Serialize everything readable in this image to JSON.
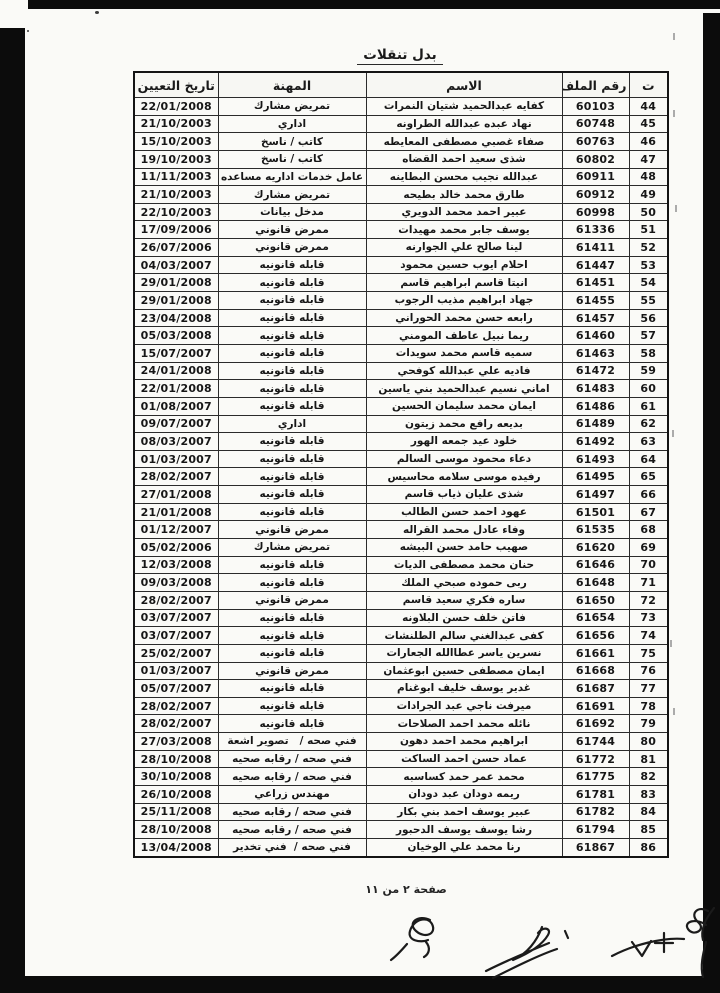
{
  "page": {
    "title": "بدل تنقلات",
    "footer": "صفحة ٢ من ١١"
  },
  "colors": {
    "page_background": "#fafaf7",
    "frame": "#0c0c0c",
    "ink": "#1a1a1a"
  },
  "table": {
    "headers": {
      "index": "ت",
      "file_no": "رقم الملف",
      "name": "الاسم",
      "profession": "المهنة",
      "date": "تاريخ التعيين"
    },
    "rows": [
      {
        "index": "44",
        "file_no": "60103",
        "name": "كفايه عبدالحميد شتيان النمرات",
        "profession": "تمريض مشارك",
        "date": "22/01/2008"
      },
      {
        "index": "45",
        "file_no": "60748",
        "name": "نهاد عبده عبدالله الطراونه",
        "profession": "اداري",
        "date": "21/10/2003"
      },
      {
        "index": "46",
        "file_no": "60763",
        "name": "صفاء غصبي مصطفى المعايطه",
        "profession": "كاتب / ناسخ",
        "date": "15/10/2003"
      },
      {
        "index": "47",
        "file_no": "60802",
        "name": "شذى سعيد احمد القضاه",
        "profession": "كاتب / ناسخ",
        "date": "19/10/2003"
      },
      {
        "index": "48",
        "file_no": "60911",
        "name": "عبدالله نجيب محسن البطاينه",
        "profession": "عامل خدمات اداريه مساعده",
        "date": "11/11/2003"
      },
      {
        "index": "49",
        "file_no": "60912",
        "name": "طارق محمد خالد بطيحه",
        "profession": "تمريض مشارك",
        "date": "21/10/2003"
      },
      {
        "index": "50",
        "file_no": "60998",
        "name": "عبير احمد محمد الدويري",
        "profession": "مدخل بيانات",
        "date": "22/10/2003"
      },
      {
        "index": "51",
        "file_no": "61336",
        "name": "يوسف جابر محمد مهيدات",
        "profession": "ممرض قانوني",
        "date": "17/09/2006"
      },
      {
        "index": "52",
        "file_no": "61411",
        "name": "لينا صالح علي الجوارنه",
        "profession": "ممرض قانوني",
        "date": "26/07/2006"
      },
      {
        "index": "53",
        "file_no": "61447",
        "name": "احلام ايوب حسين محمود",
        "profession": "قابله قانونيه",
        "date": "04/03/2007"
      },
      {
        "index": "54",
        "file_no": "61451",
        "name": "انيتا قاسم ابراهيم قاسم",
        "profession": "قابله قانونيه",
        "date": "29/01/2008"
      },
      {
        "index": "55",
        "file_no": "61455",
        "name": "جهاد ابراهيم مذيب الرجوب",
        "profession": "قابله قانونيه",
        "date": "29/01/2008"
      },
      {
        "index": "56",
        "file_no": "61457",
        "name": "رابعه حسن محمد الحوراني",
        "profession": "قابله قانونيه",
        "date": "23/04/2008"
      },
      {
        "index": "57",
        "file_no": "61460",
        "name": "ريما نبيل عاطف المومني",
        "profession": "قابله قانونيه",
        "date": "05/03/2008"
      },
      {
        "index": "58",
        "file_no": "61463",
        "name": "سميه قاسم محمد سويدات",
        "profession": "قابله قانونيه",
        "date": "15/07/2007"
      },
      {
        "index": "59",
        "file_no": "61472",
        "name": "فاديه علي عبدالله كوفحي",
        "profession": "قابله قانونيه",
        "date": "24/01/2008"
      },
      {
        "index": "60",
        "file_no": "61483",
        "name": "اماني نسيم عبدالحميد بني ياسين",
        "profession": "قابله قانونيه",
        "date": "22/01/2008"
      },
      {
        "index": "61",
        "file_no": "61486",
        "name": "ايمان محمد سليمان الحسين",
        "profession": "قابله قانونيه",
        "date": "01/08/2007"
      },
      {
        "index": "62",
        "file_no": "61489",
        "name": "بديعه رافع محمد زيتون",
        "profession": "اداري",
        "date": "09/07/2007"
      },
      {
        "index": "63",
        "file_no": "61492",
        "name": "خلود عيد جمعه الهور",
        "profession": "قابله قانونيه",
        "date": "08/03/2007"
      },
      {
        "index": "64",
        "file_no": "61493",
        "name": "دعاء محمود موسى السالم",
        "profession": "قابله قانونيه",
        "date": "01/03/2007"
      },
      {
        "index": "65",
        "file_no": "61495",
        "name": "رفيده موسى سلامه محاسيس",
        "profession": "قابله قانونيه",
        "date": "28/02/2007"
      },
      {
        "index": "66",
        "file_no": "61497",
        "name": "شذى عليان ذياب قاسم",
        "profession": "قابله قانونيه",
        "date": "27/01/2008"
      },
      {
        "index": "67",
        "file_no": "61501",
        "name": "عهود احمد حسن الطالب",
        "profession": "قابله قانونيه",
        "date": "21/01/2008"
      },
      {
        "index": "68",
        "file_no": "61535",
        "name": "وفاء عادل محمد القراله",
        "profession": "ممرض قانوني",
        "date": "01/12/2007"
      },
      {
        "index": "69",
        "file_no": "61620",
        "name": "صهيب حامد حسن البيشه",
        "profession": "تمريض مشارك",
        "date": "05/02/2006"
      },
      {
        "index": "70",
        "file_no": "61646",
        "name": "حنان محمد مصطفى الديات",
        "profession": "قابله قانونيه",
        "date": "12/03/2008"
      },
      {
        "index": "71",
        "file_no": "61648",
        "name": "ربى حموده صبحي الملك",
        "profession": "قابله قانونيه",
        "date": "09/03/2008"
      },
      {
        "index": "72",
        "file_no": "61650",
        "name": "ساره فكري سعيد قاسم",
        "profession": "ممرض قانوني",
        "date": "28/02/2007"
      },
      {
        "index": "73",
        "file_no": "61654",
        "name": "فاتن خلف حسن البلاونه",
        "profession": "قابله قانونيه",
        "date": "03/07/2007"
      },
      {
        "index": "74",
        "file_no": "61656",
        "name": "كفى عبدالغني سالم الطلنشات",
        "profession": "قابله قانونيه",
        "date": "03/07/2007"
      },
      {
        "index": "75",
        "file_no": "61661",
        "name": "نسرين ياسر عطاالله الجعارات",
        "profession": "قابله قانونيه",
        "date": "25/02/2007"
      },
      {
        "index": "76",
        "file_no": "61668",
        "name": "ايمان مصطفى حسين ابوعثمان",
        "profession": "ممرض قانوني",
        "date": "01/03/2007"
      },
      {
        "index": "77",
        "file_no": "61687",
        "name": "غدير يوسف خليف ابوغنام",
        "profession": "قابله قانونيه",
        "date": "05/07/2007"
      },
      {
        "index": "78",
        "file_no": "61691",
        "name": "ميرفت ناجي عبد الجرادات",
        "profession": "قابله قانونيه",
        "date": "28/02/2007"
      },
      {
        "index": "79",
        "file_no": "61692",
        "name": "نائله محمد احمد الصلاحات",
        "profession": "قابله قانونيه",
        "date": "28/02/2007"
      },
      {
        "index": "80",
        "file_no": "61744",
        "name": "ابراهيم محمد احمد دهون",
        "profession": "فني صحه /   تصوير اشعة",
        "date": "27/03/2008"
      },
      {
        "index": "81",
        "file_no": "61772",
        "name": "عماد حسن احمد الساكت",
        "profession": "فني صحه / رقابه صحيه",
        "date": "28/10/2008"
      },
      {
        "index": "82",
        "file_no": "61775",
        "name": "محمد عمر حمد كساسبه",
        "profession": "فني صحه / رقابه صحيه",
        "date": "30/10/2008"
      },
      {
        "index": "83",
        "file_no": "61781",
        "name": "ريمه دودان عبد دودان",
        "profession": "مهندس زراعي",
        "date": "26/10/2008"
      },
      {
        "index": "84",
        "file_no": "61782",
        "name": "عبير يوسف احمد بني بكار",
        "profession": "فني صحه / رقابه صحيه",
        "date": "25/11/2008"
      },
      {
        "index": "85",
        "file_no": "61794",
        "name": "رشا يوسف يوسف الدحبور",
        "profession": "فني صحه / رقابه صحيه",
        "date": "28/10/2008"
      },
      {
        "index": "86",
        "file_no": "61867",
        "name": "رنا محمد علي الوخيان",
        "profession": "فني صحه /  فني تخدير",
        "date": "13/04/2008"
      }
    ]
  }
}
